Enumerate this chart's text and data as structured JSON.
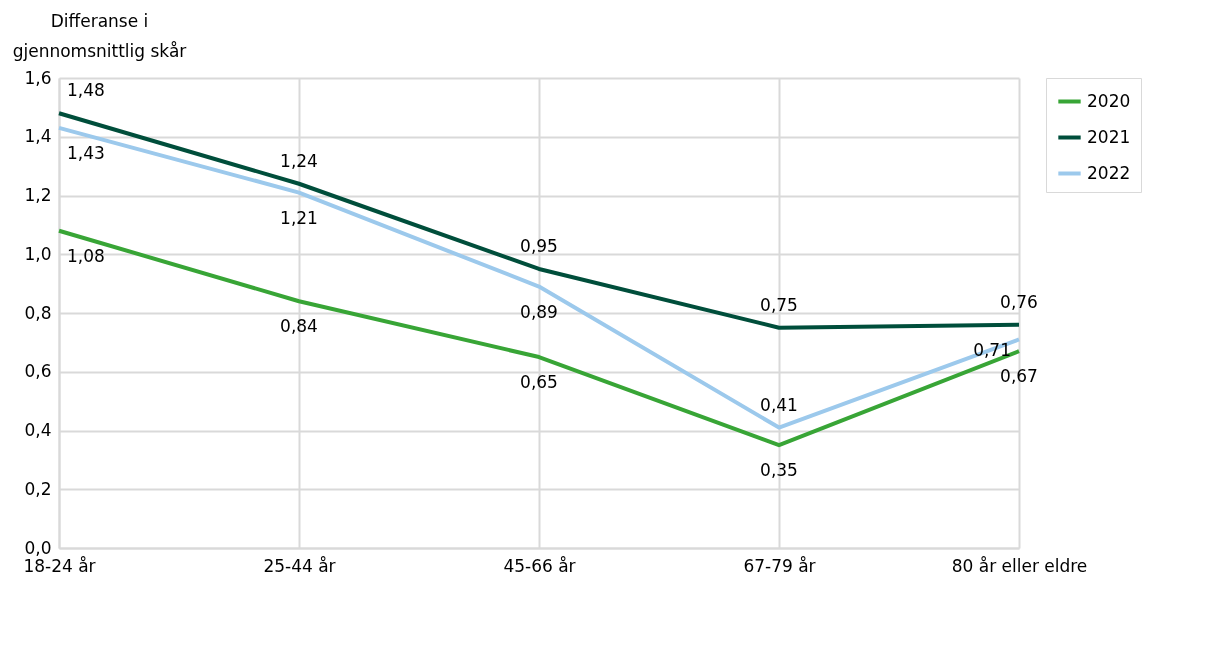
{
  "chart_data": {
    "type": "line",
    "ylabel": "Differanse i gjennomsnittlig skår",
    "categories": [
      "18-24 år",
      "25-44 år",
      "45-66 år",
      "67-79 år",
      "80 år eller eldre"
    ],
    "series": [
      {
        "name": "2020",
        "color": "#38a536",
        "values": [
          1.08,
          0.84,
          0.65,
          0.35,
          0.67
        ],
        "value_labels": [
          "1,08",
          "0,84",
          "0,65",
          "0,35",
          "0,67"
        ]
      },
      {
        "name": "2021",
        "color": "#004e3b",
        "values": [
          1.48,
          1.24,
          0.95,
          0.75,
          0.76
        ],
        "value_labels": [
          "1,48",
          "1,24",
          "0,95",
          "0,75",
          "0,76"
        ]
      },
      {
        "name": "2022",
        "color": "#9cc9ec",
        "values": [
          1.43,
          1.21,
          0.89,
          0.41,
          0.71
        ],
        "value_labels": [
          "1,43",
          "1,21",
          "0,89",
          "0,41",
          "0,71"
        ]
      }
    ],
    "ylim": [
      0,
      1.6
    ],
    "yticks": [
      {
        "value": 0,
        "label": "0,0"
      },
      {
        "value": 0.2,
        "label": "0,2"
      },
      {
        "value": 0.4,
        "label": "0,4"
      },
      {
        "value": 0.6,
        "label": "0,6"
      },
      {
        "value": 0.8,
        "label": "0,8"
      },
      {
        "value": 1,
        "label": "1,0"
      },
      {
        "value": 1.2,
        "label": "1,2"
      },
      {
        "value": 1.4,
        "label": "1,4"
      },
      {
        "value": 1.6,
        "label": "1,6"
      }
    ],
    "grid": true,
    "legend": "right",
    "marker": "none",
    "line_style": "solid"
  }
}
